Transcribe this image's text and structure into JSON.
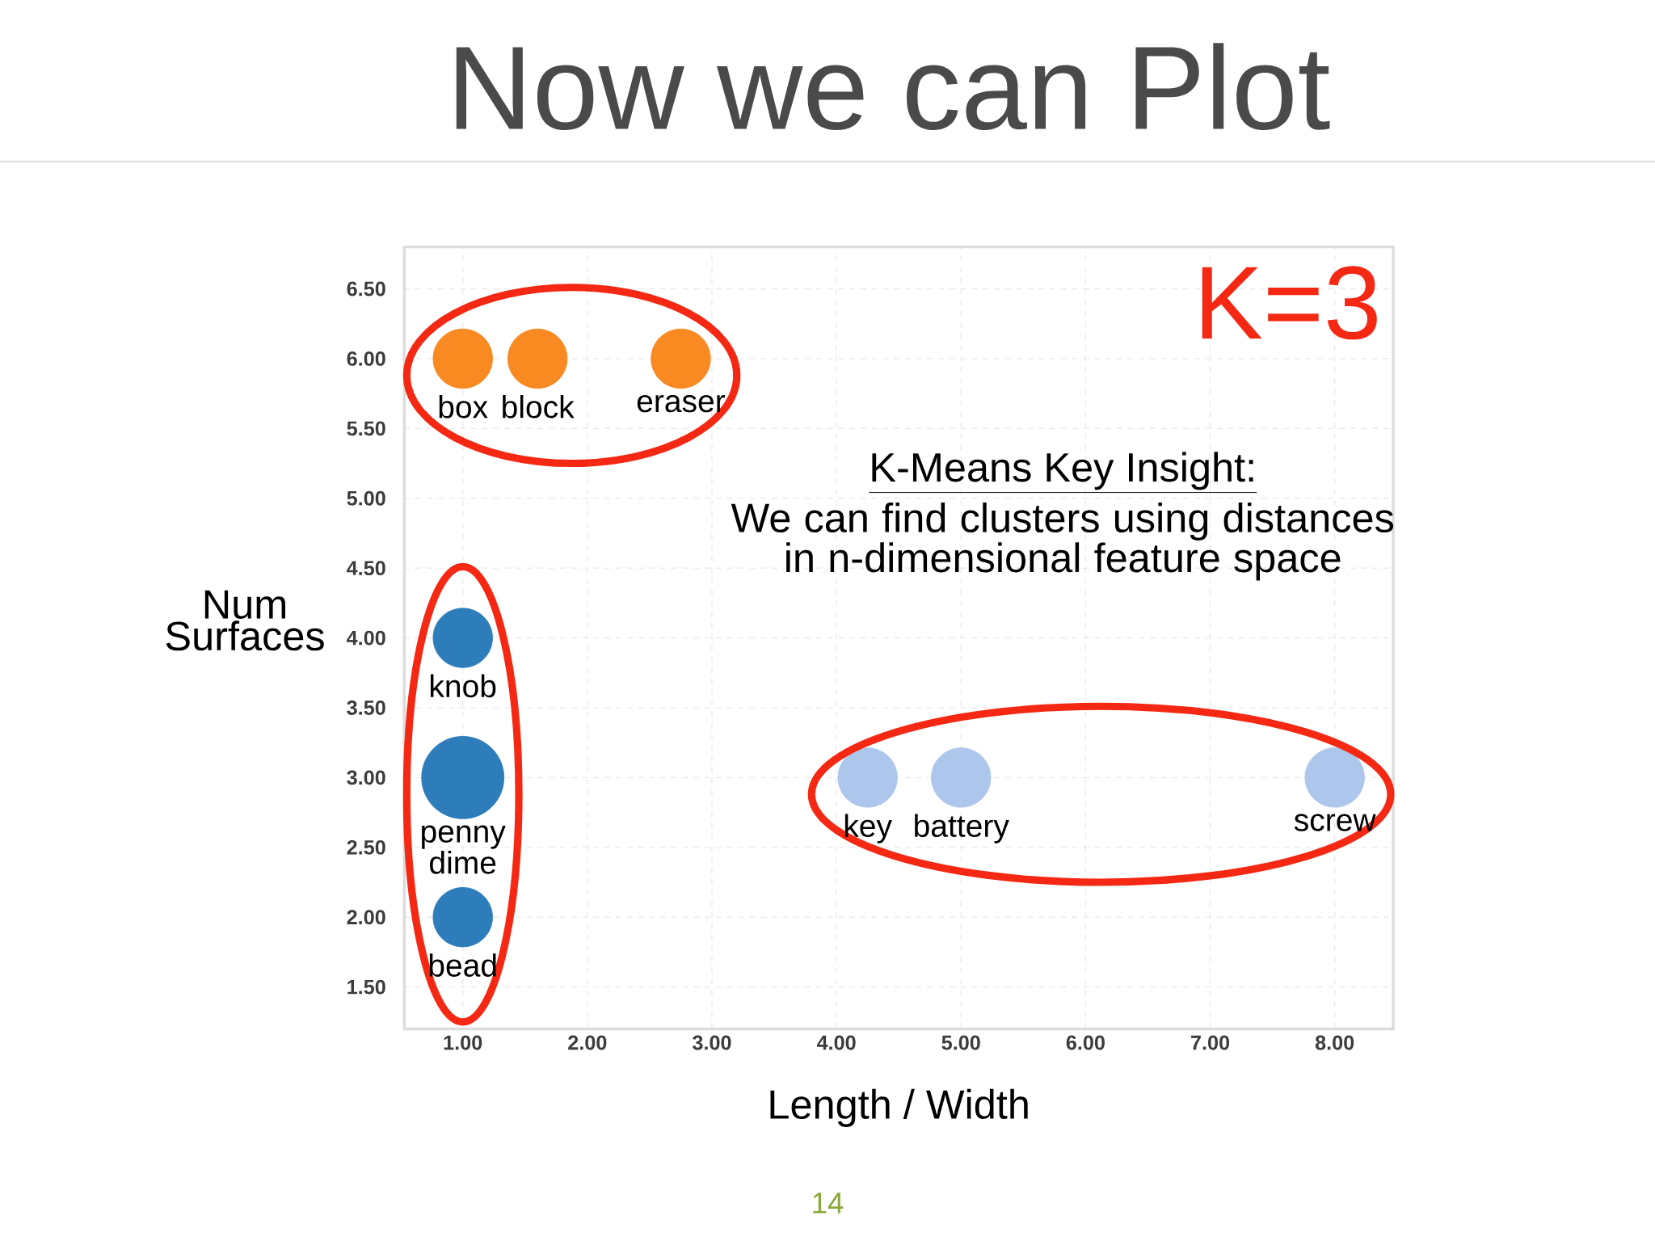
{
  "chart_data": {
    "type": "bubble",
    "title": "Now we can Plot",
    "xlabel": "Length / Width",
    "ylabel": "Num Surfaces",
    "xlim": [
      0.53,
      8.47
    ],
    "ylim": [
      1.2,
      6.8
    ],
    "xticks": [
      {
        "value": 1,
        "label": "1.00"
      },
      {
        "value": 2,
        "label": "2.00"
      },
      {
        "value": 3,
        "label": "3.00"
      },
      {
        "value": 4,
        "label": "4.00"
      },
      {
        "value": 5,
        "label": "5.00"
      },
      {
        "value": 6,
        "label": "6.00"
      },
      {
        "value": 7,
        "label": "7.00"
      },
      {
        "value": 8,
        "label": "8.00"
      }
    ],
    "yticks": [
      {
        "value": 1.5,
        "label": "1.50"
      },
      {
        "value": 2,
        "label": "2.00"
      },
      {
        "value": 2.5,
        "label": "2.50"
      },
      {
        "value": 3,
        "label": "3.00"
      },
      {
        "value": 3.5,
        "label": "3.50"
      },
      {
        "value": 4,
        "label": "4.00"
      },
      {
        "value": 4.5,
        "label": "4.50"
      },
      {
        "value": 5,
        "label": "5.00"
      },
      {
        "value": 5.5,
        "label": "5.50"
      },
      {
        "value": 6,
        "label": "6.00"
      },
      {
        "value": 6.5,
        "label": "6.50"
      }
    ],
    "grid": true,
    "series": [
      {
        "color": "#f98a22",
        "x": [
          1,
          1.6,
          2.75
        ],
        "values": [
          6,
          6,
          6
        ],
        "sizes": [
          0.52,
          0.52,
          0.52
        ]
      },
      {
        "color": "#2e7dbb",
        "x": [
          1,
          1,
          1
        ],
        "values": [
          4,
          3,
          2
        ],
        "sizes": [
          0.52,
          1,
          0.52
        ]
      },
      {
        "color": "#adc6ec",
        "x": [
          4.25,
          5,
          8
        ],
        "values": [
          3,
          3,
          3
        ],
        "sizes": [
          0.52,
          0.52,
          0.52
        ]
      }
    ],
    "annotations": [
      "K=3",
      "K-Means Key Insight:",
      "We can find clusters using distances in n-dimensional feature space",
      "14",
      {
        "text": "box",
        "x": 1,
        "y": 6
      },
      {
        "text": "block",
        "x": 1.6,
        "y": 6
      },
      {
        "text": "eraser",
        "x": 2.75,
        "y": 6
      },
      {
        "text": "knob",
        "x": 1,
        "y": 4
      },
      {
        "text": "penny dime",
        "x": 1,
        "y": 3
      },
      {
        "text": "bead",
        "x": 1,
        "y": 2
      },
      {
        "text": "key",
        "x": 4.25,
        "y": 3
      },
      {
        "text": "battery",
        "x": 5,
        "y": 3
      },
      {
        "text": "screw",
        "x": 8,
        "y": 3
      }
    ]
  }
}
